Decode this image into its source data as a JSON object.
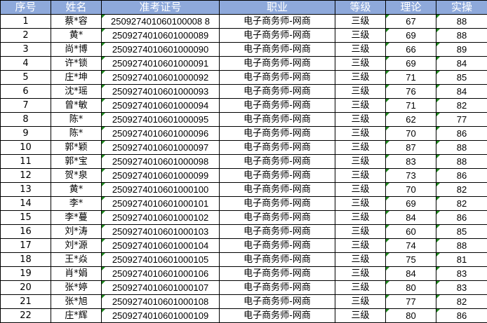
{
  "colors": {
    "header_bg": "#8EA9DB",
    "header_text": "#FFFFFF",
    "text_marker": "#1E8A1E"
  },
  "headers": [
    "序号",
    "姓名",
    "准考证号",
    "职业",
    "等级",
    "理论",
    "实操"
  ],
  "rows": [
    [
      "1",
      "蔡*容",
      "250927401060100008 8",
      "电子商务师-网商",
      "三级",
      "67",
      "88"
    ],
    [
      "2",
      "黄*",
      "2509274010601000089",
      "电子商务师-网商",
      "三级",
      "69",
      "88"
    ],
    [
      "3",
      "尚*博",
      "2509274010601000090",
      "电子商务师-网商",
      "三级",
      "66",
      "89"
    ],
    [
      "4",
      "许*锁",
      "2509274010601000091",
      "电子商务师-网商",
      "三级",
      "69",
      "84"
    ],
    [
      "5",
      "庄*坤",
      "2509274010601000092",
      "电子商务师-网商",
      "三级",
      "71",
      "85"
    ],
    [
      "6",
      "沈*瑶",
      "2509274010601000093",
      "电子商务师-网商",
      "三级",
      "76",
      "84"
    ],
    [
      "7",
      "曾*敏",
      "2509274010601000094",
      "电子商务师-网商",
      "三级",
      "71",
      "82"
    ],
    [
      "8",
      "陈*",
      "2509274010601000095",
      "电子商务师-网商",
      "三级",
      "62",
      "77"
    ],
    [
      "9",
      "陈*",
      "2509274010601000096",
      "电子商务师-网商",
      "三级",
      "70",
      "86"
    ],
    [
      "10",
      "郭*颖",
      "2509274010601000097",
      "电子商务师-网商",
      "三级",
      "87",
      "88"
    ],
    [
      "11",
      "郭*宝",
      "2509274010601000098",
      "电子商务师-网商",
      "三级",
      "83",
      "88"
    ],
    [
      "12",
      "贺*泉",
      "2509274010601000099",
      "电子商务师-网商",
      "三级",
      "73",
      "86"
    ],
    [
      "13",
      "黄*",
      "2509274010601000100",
      "电子商务师-网商",
      "三级",
      "70",
      "82"
    ],
    [
      "14",
      "李*",
      "2509274010601000101",
      "电子商务师-网商",
      "三级",
      "69",
      "82"
    ],
    [
      "15",
      "李*蔓",
      "2509274010601000102",
      "电子商务师-网商",
      "三级",
      "84",
      "86"
    ],
    [
      "16",
      "刘*涛",
      "2509274010601000103",
      "电子商务师-网商",
      "三级",
      "60",
      "85"
    ],
    [
      "17",
      "刘*源",
      "2509274010601000104",
      "电子商务师-网商",
      "三级",
      "74",
      "88"
    ],
    [
      "18",
      "王*焱",
      "2509274010601000105",
      "电子商务师-网商",
      "三级",
      "75",
      "81"
    ],
    [
      "19",
      "肖*娟",
      "2509274010601000106",
      "电子商务师-网商",
      "三级",
      "84",
      "83"
    ],
    [
      "20",
      "张*婷",
      "2509274010601000107",
      "电子商务师-网商",
      "三级",
      "80",
      "83"
    ],
    [
      "21",
      "张*旭",
      "2509274010601000108",
      "电子商务师-网商",
      "三级",
      "77",
      "82"
    ],
    [
      "22",
      "庄*辉",
      "2509274010601000109",
      "电子商务师-网商",
      "三级",
      "80",
      "86"
    ]
  ]
}
